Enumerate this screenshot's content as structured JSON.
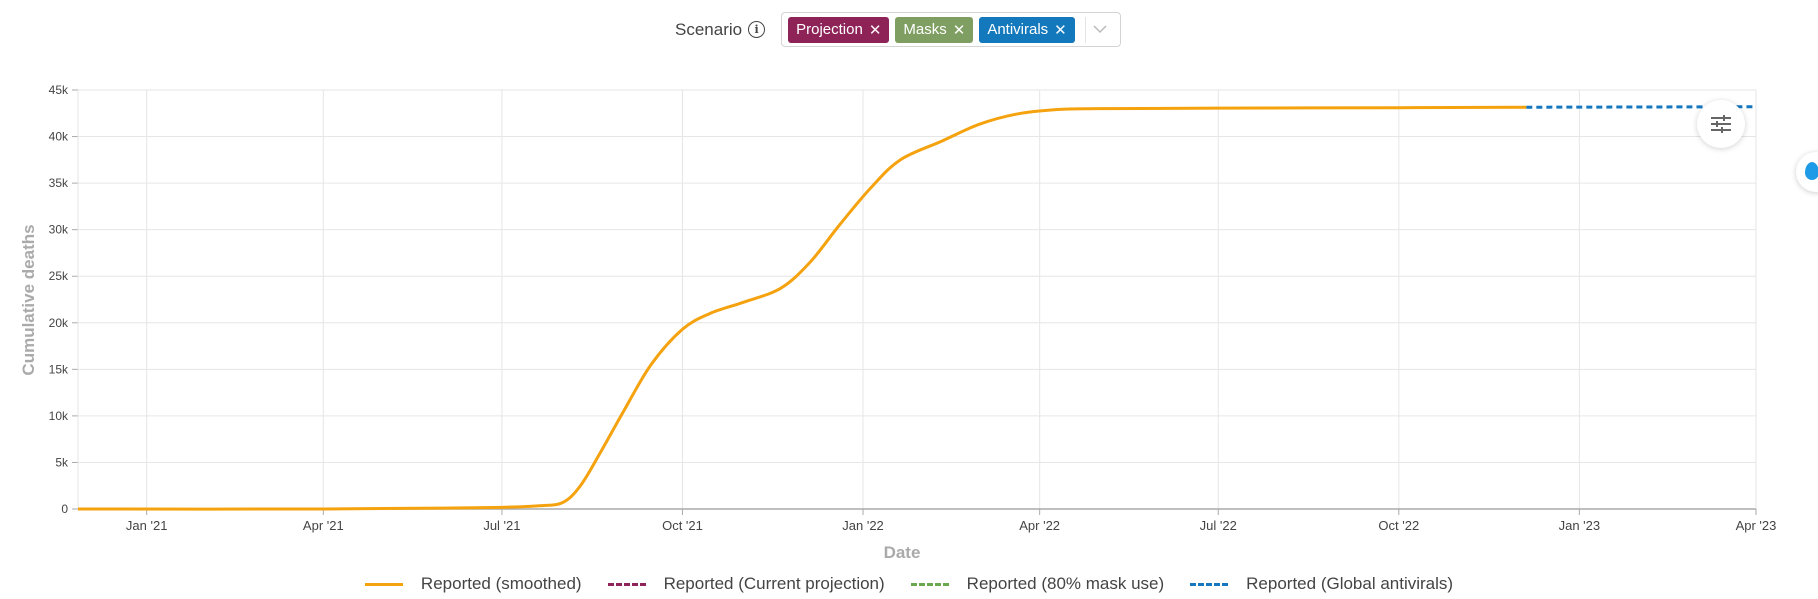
{
  "scenario": {
    "label": "Scenario",
    "tags": [
      {
        "label": "Projection",
        "color": "#8e2357"
      },
      {
        "label": "Masks",
        "color": "#7f9f62"
      },
      {
        "label": "Antivirals",
        "color": "#1479bc"
      }
    ]
  },
  "colors": {
    "reported": "#f5a20f",
    "projection": "#8e2357",
    "masks": "#6aa84f",
    "antivirals": "#1477c0",
    "grid": "#e6e6e6",
    "axis": "#aaaaaa"
  },
  "chart_data": {
    "type": "line",
    "xlabel": "Date",
    "ylabel": "Cumulative deaths",
    "x_type": "date",
    "xlim": [
      "2020-11-27",
      "2023-04-01"
    ],
    "ylim": [
      0,
      45000
    ],
    "y_ticks": [
      0,
      5000,
      10000,
      15000,
      20000,
      25000,
      30000,
      35000,
      40000,
      45000
    ],
    "y_tick_labels": [
      "0",
      "5k",
      "10k",
      "15k",
      "20k",
      "25k",
      "30k",
      "35k",
      "40k",
      "45k"
    ],
    "x_ticks": [
      "2021-01-01",
      "2021-04-01",
      "2021-07-01",
      "2021-10-01",
      "2022-01-01",
      "2022-04-01",
      "2022-07-01",
      "2022-10-01",
      "2023-01-01",
      "2023-04-01"
    ],
    "x_tick_labels": [
      "Jan '21",
      "Apr '21",
      "Jul '21",
      "Oct '21",
      "Jan '22",
      "Apr '22",
      "Jul '22",
      "Oct '22",
      "Jan '23",
      "Apr '23"
    ],
    "grid": true,
    "legend_position": "bottom",
    "series": [
      {
        "name": "Reported (smoothed)",
        "style": "solid",
        "color_key": "reported",
        "points": [
          [
            "2020-11-27",
            0
          ],
          [
            "2021-04-01",
            0
          ],
          [
            "2021-06-01",
            100
          ],
          [
            "2021-07-01",
            180
          ],
          [
            "2021-07-20",
            350
          ],
          [
            "2021-08-01",
            700
          ],
          [
            "2021-08-10",
            2500
          ],
          [
            "2021-08-20",
            6000
          ],
          [
            "2021-09-01",
            10500
          ],
          [
            "2021-09-15",
            15500
          ],
          [
            "2021-10-01",
            19300
          ],
          [
            "2021-10-15",
            21000
          ],
          [
            "2021-11-01",
            22200
          ],
          [
            "2021-11-20",
            23700
          ],
          [
            "2021-12-05",
            26500
          ],
          [
            "2021-12-20",
            30500
          ],
          [
            "2022-01-05",
            34500
          ],
          [
            "2022-01-20",
            37500
          ],
          [
            "2022-02-10",
            39500
          ],
          [
            "2022-03-01",
            41300
          ],
          [
            "2022-03-20",
            42400
          ],
          [
            "2022-04-10",
            42900
          ],
          [
            "2022-05-01",
            43000
          ],
          [
            "2022-07-01",
            43050
          ],
          [
            "2022-10-01",
            43100
          ],
          [
            "2022-12-05",
            43150
          ]
        ]
      },
      {
        "name": "Reported (Current projection)",
        "style": "dashed",
        "color_key": "projection",
        "points": []
      },
      {
        "name": "Reported (80% mask use)",
        "style": "dashed",
        "color_key": "masks",
        "points": []
      },
      {
        "name": "Reported (Global antivirals)",
        "style": "dashed",
        "color_key": "antivirals",
        "points": [
          [
            "2022-12-05",
            43150
          ],
          [
            "2023-04-01",
            43200
          ]
        ]
      }
    ]
  }
}
